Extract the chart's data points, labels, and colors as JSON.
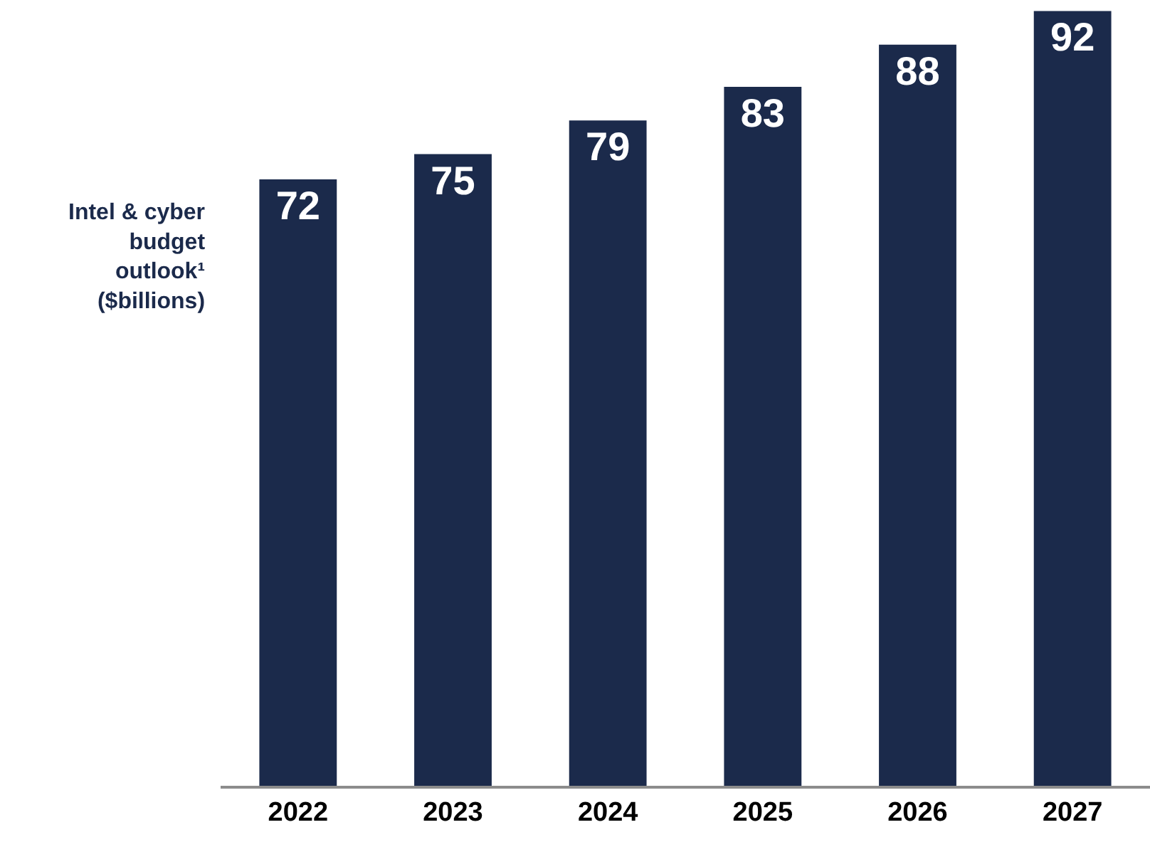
{
  "chart_data": {
    "type": "bar",
    "categories": [
      "2022",
      "2023",
      "2024",
      "2025",
      "2026",
      "2027"
    ],
    "values": [
      72,
      75,
      79,
      83,
      88,
      92
    ],
    "color": "#1b2a4b",
    "ylabel": "Intel & cyber budget outlook¹ ($billions)",
    "data_labels": true,
    "legend": false
  }
}
